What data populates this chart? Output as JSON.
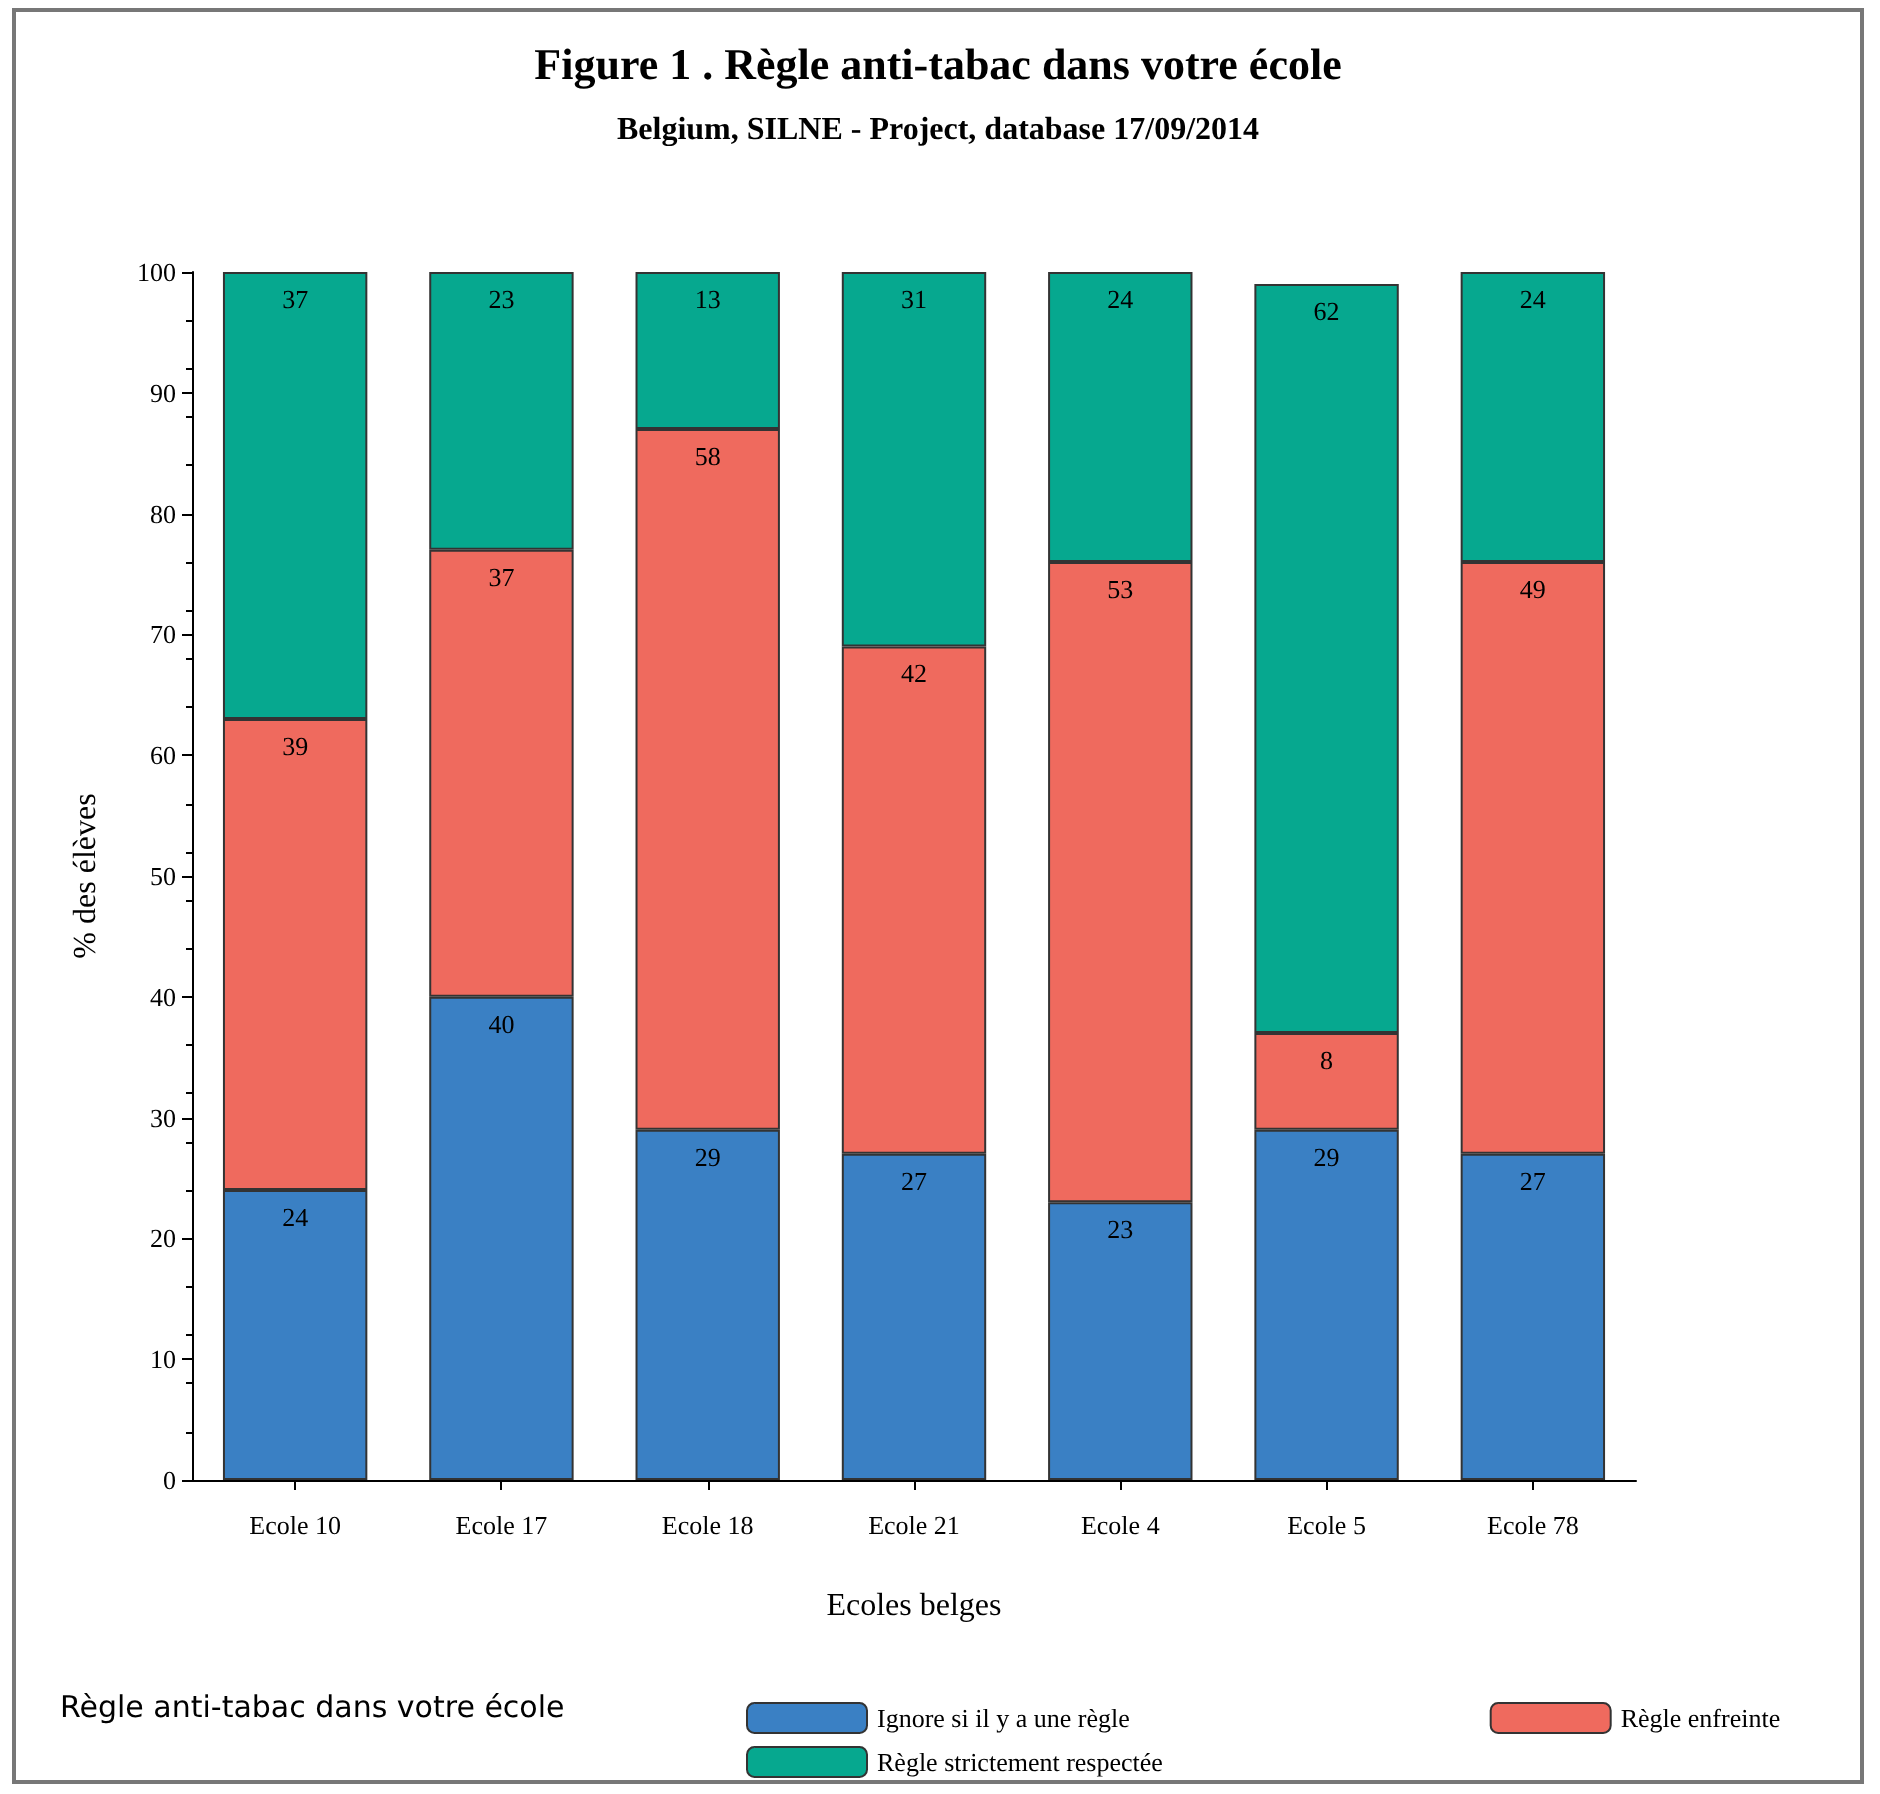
{
  "chart_data": {
    "type": "bar",
    "title": "Figure 1 . Règle anti-tabac dans votre école",
    "subtitle": "Belgium, SILNE - Project, database 17/09/2014",
    "xlabel": "Ecoles belges",
    "ylabel": "% des élèves",
    "legend_title": "Règle anti-tabac dans votre école",
    "categories": [
      "Ecole 10",
      "Ecole 17",
      "Ecole 18",
      "Ecole 21",
      "Ecole 4",
      "Ecole 5",
      "Ecole 78"
    ],
    "series": [
      {
        "name": "Ignore si il y a une règle",
        "color": "#3a80c4",
        "values": [
          24,
          40,
          29,
          27,
          23,
          29,
          27
        ]
      },
      {
        "name": "Règle enfreinte",
        "color": "#ef6a5e",
        "values": [
          39,
          37,
          58,
          42,
          53,
          8,
          49
        ]
      },
      {
        "name": "Règle strictement respectée",
        "color": "#06a88f",
        "values": [
          37,
          23,
          13,
          31,
          24,
          62,
          24
        ]
      }
    ],
    "stacked": true,
    "data_labels": true,
    "ylim": [
      0,
      100
    ],
    "yticks": [
      0,
      10,
      20,
      30,
      40,
      50,
      60,
      70,
      80,
      90,
      100
    ],
    "grid": false,
    "legend": "bottom"
  }
}
